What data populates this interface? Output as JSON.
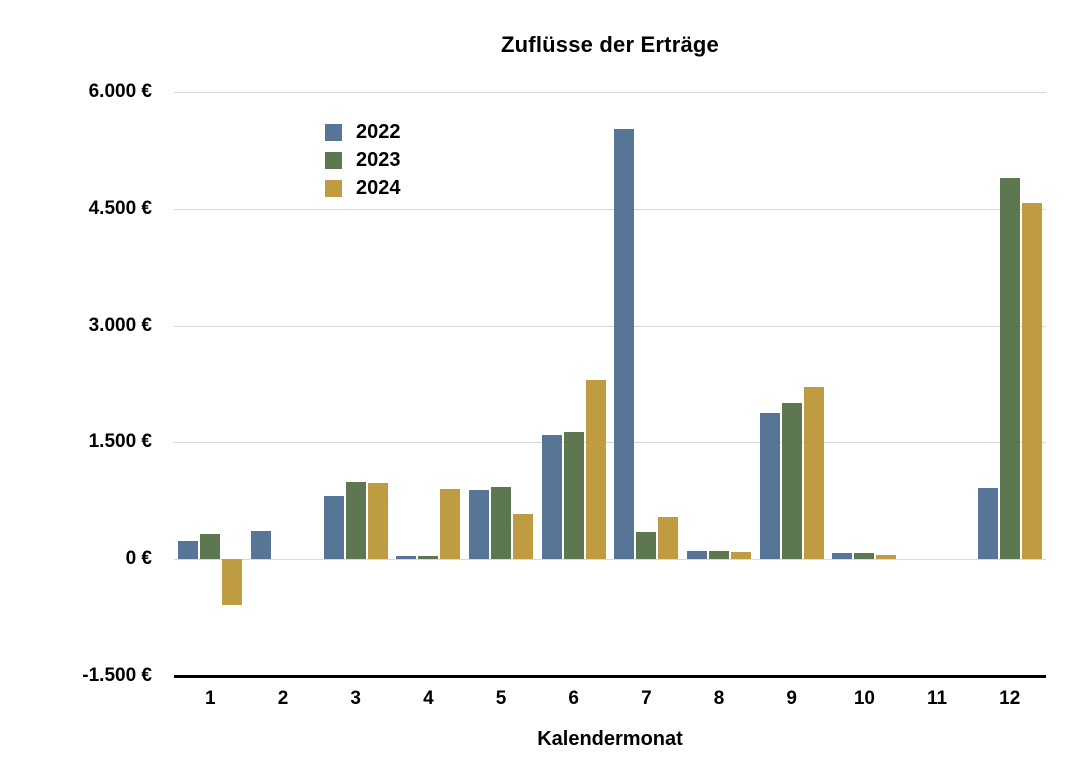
{
  "title": "Zuflüsse der Erträge",
  "chart_data": {
    "type": "bar",
    "title": "Zuflüsse der Erträge",
    "xlabel": "Kalendermonat",
    "ylabel": "",
    "categories": [
      "1",
      "2",
      "3",
      "4",
      "5",
      "6",
      "7",
      "8",
      "9",
      "10",
      "11",
      "12"
    ],
    "series": [
      {
        "name": "2022",
        "color": "#577697",
        "values": [
          230,
          360,
          810,
          40,
          890,
          1590,
          5520,
          100,
          1880,
          80,
          null,
          910
        ]
      },
      {
        "name": "2023",
        "color": "#5D7751",
        "values": [
          320,
          null,
          990,
          40,
          930,
          1630,
          350,
          100,
          2000,
          80,
          null,
          4900
        ]
      },
      {
        "name": "2024",
        "color": "#BF9B41",
        "values": [
          -590,
          null,
          980,
          900,
          580,
          2300,
          540,
          90,
          2210,
          50,
          null,
          4580
        ]
      }
    ],
    "y_ticks": [
      "6.000 €",
      "4.500 €",
      "3.000 €",
      "1.500 €",
      "0 €",
      "-1.500 €"
    ],
    "y_tick_values": [
      6000,
      4500,
      3000,
      1500,
      0,
      -1500
    ],
    "ylim": [
      -1500,
      6000
    ],
    "grid": true,
    "grid_color": "#D9D9D9",
    "axis_color": "#000000",
    "legend_position": "top-left-inside"
  }
}
